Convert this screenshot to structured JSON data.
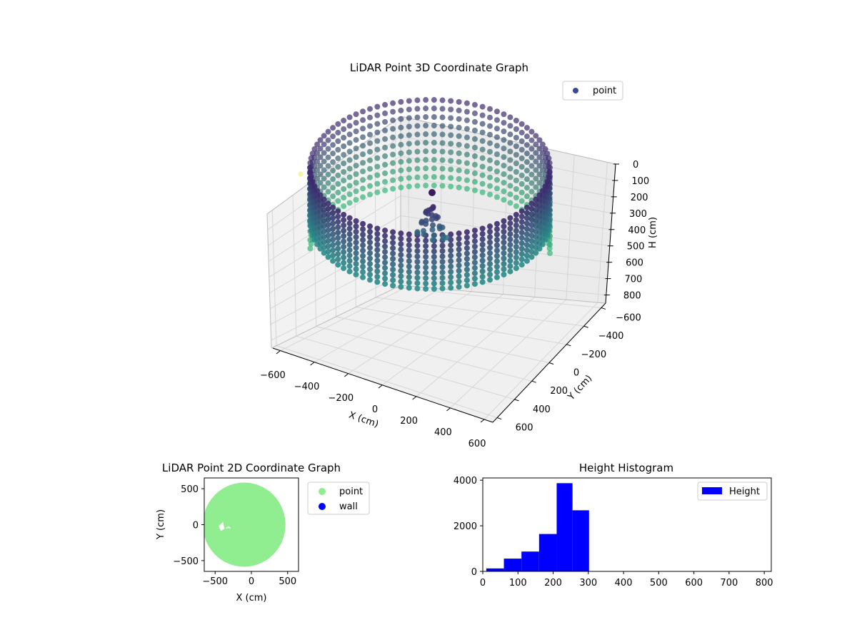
{
  "colors": {
    "point2d": "#90ee90",
    "wall": "#0000ff",
    "histogram": "#0000ff",
    "legend_point3d": "#3b4a8c",
    "viridis_dark": "#3d2b6e",
    "viridis_mid": "#2a8c8a",
    "viridis_light": "#35b779",
    "outlier": "#f5f08c"
  },
  "chart_data": [
    {
      "type": "scatter",
      "projection": "3d",
      "title": "LiDAR Point 3D Coordinate Graph",
      "xlabel": "X (cm)",
      "ylabel": "Y (cm)",
      "zlabel": "H (cm)",
      "xticks": [
        "−600",
        "−400",
        "−200",
        "0",
        "200",
        "400",
        "600"
      ],
      "yticks": [
        "600",
        "400",
        "200",
        "0",
        "−200",
        "−400",
        "−600"
      ],
      "zticks": [
        "0",
        "100",
        "200",
        "300",
        "400",
        "500",
        "600",
        "700",
        "800"
      ],
      "xlim": [
        -650,
        650
      ],
      "ylim": [
        -650,
        650
      ],
      "zlim": [
        850,
        0
      ],
      "legend": {
        "entries": [
          "point"
        ],
        "placement": "top-right"
      },
      "colormap": "viridis",
      "grid": true,
      "description_of_points": "ring of points at radius ~580 cm with heights ~150-320 cm, plus interior cluster near the center"
    },
    {
      "type": "scatter",
      "title": "LiDAR Point 2D Coordinate Graph",
      "xlabel": "X (cm)",
      "ylabel": "Y (cm)",
      "xticks": [
        "−500",
        "0",
        "500"
      ],
      "yticks": [
        "500",
        "0",
        "−500"
      ],
      "xlim": [
        -650,
        650
      ],
      "ylim": [
        -650,
        650
      ],
      "legend": {
        "entries": [
          "point",
          "wall"
        ],
        "placement": "outside-right"
      },
      "series": [
        {
          "name": "point",
          "shape": "disk",
          "center": [
            -100,
            0
          ],
          "radius": 570
        },
        {
          "name": "wall",
          "values": []
        }
      ]
    },
    {
      "type": "bar",
      "subtype": "histogram",
      "title": "Height Histogram",
      "xticks": [
        "0",
        "100",
        "200",
        "300",
        "400",
        "500",
        "600",
        "700",
        "800"
      ],
      "yticks": [
        "0",
        "2000",
        "4000"
      ],
      "xlim": [
        0,
        820
      ],
      "ylim": [
        0,
        4100
      ],
      "legend": {
        "entries": [
          "Height"
        ],
        "placement": "top-right"
      },
      "bins": [
        {
          "start": 10,
          "end": 60,
          "count": 130
        },
        {
          "start": 60,
          "end": 110,
          "count": 560
        },
        {
          "start": 110,
          "end": 160,
          "count": 870
        },
        {
          "start": 160,
          "end": 210,
          "count": 1640
        },
        {
          "start": 210,
          "end": 255,
          "count": 3870
        },
        {
          "start": 255,
          "end": 302,
          "count": 2680
        }
      ]
    }
  ]
}
